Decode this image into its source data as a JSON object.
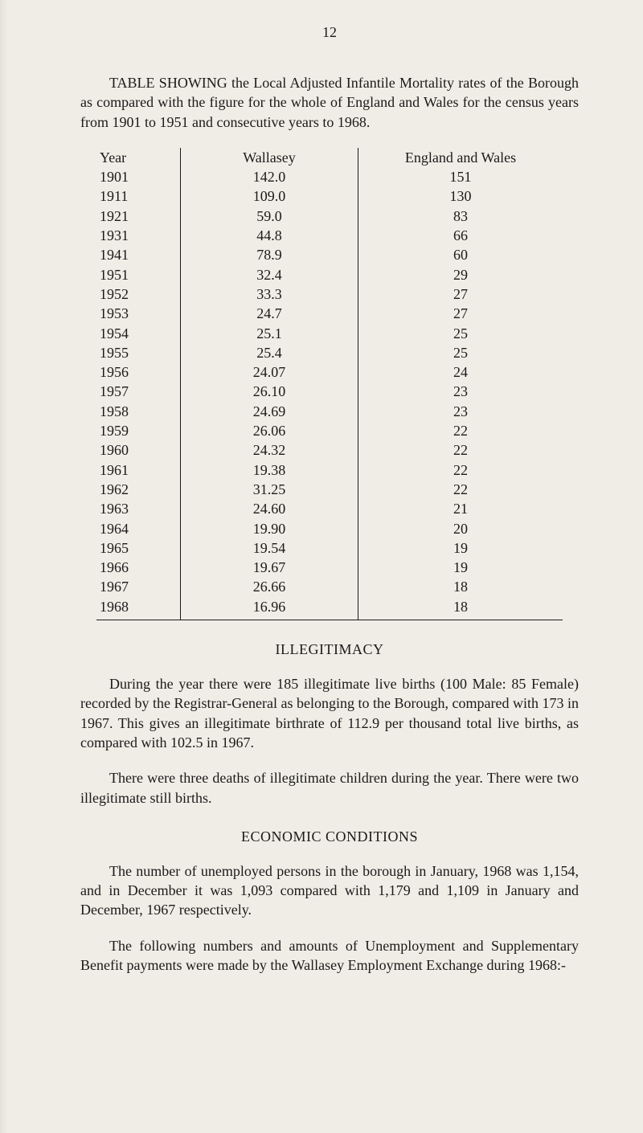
{
  "page_number": "12",
  "intro_paragraph": "TABLE SHOWING the Local Adjusted Infantile Mortality rates of the Borough as compared with the figure for the whole of England and Wales for the census years from 1901 to 1951 and consecutive years to 1968.",
  "mortality_table": {
    "type": "table",
    "columns": [
      "Year",
      "Wallasey",
      "England and Wales"
    ],
    "rows": [
      [
        "1901",
        "142.0",
        "151"
      ],
      [
        "1911",
        "109.0",
        "130"
      ],
      [
        "1921",
        "59.0",
        "83"
      ],
      [
        "1931",
        "44.8",
        "66"
      ],
      [
        "1941",
        "78.9",
        "60"
      ],
      [
        "1951",
        "32.4",
        "29"
      ],
      [
        "1952",
        "33.3",
        "27"
      ],
      [
        "1953",
        "24.7",
        "27"
      ],
      [
        "1954",
        "25.1",
        "25"
      ],
      [
        "1955",
        "25.4",
        "25"
      ],
      [
        "1956",
        "24.07",
        "24"
      ],
      [
        "1957",
        "26.10",
        "23"
      ],
      [
        "1958",
        "24.69",
        "23"
      ],
      [
        "1959",
        "26.06",
        "22"
      ],
      [
        "1960",
        "24.32",
        "22"
      ],
      [
        "1961",
        "19.38",
        "22"
      ],
      [
        "1962",
        "31.25",
        "22"
      ],
      [
        "1963",
        "24.60",
        "21"
      ],
      [
        "1964",
        "19.90",
        "20"
      ],
      [
        "1965",
        "19.54",
        "19"
      ],
      [
        "1966",
        "19.67",
        "19"
      ],
      [
        "1967",
        "26.66",
        "18"
      ],
      [
        "1968",
        "16.96",
        "18"
      ]
    ],
    "border_color": "#1a1a1a",
    "font_size": 18
  },
  "sections": {
    "illegitimacy": {
      "title": "ILLEGITIMACY",
      "paragraphs": [
        "During the year there were 185 illegitimate live births (100 Male: 85 Female) recorded by the Registrar-General as belonging to the Borough, compared with 173 in 1967. This gives an illegitimate birthrate of 112.9 per thousand total live births, as compared with 102.5 in 1967.",
        "There were three deaths of illegitimate children during the year. There were two illegitimate still births."
      ]
    },
    "economic": {
      "title": "ECONOMIC CONDITIONS",
      "paragraphs": [
        "The number of unemployed persons in the borough in January, 1968 was 1,154, and in December it was 1,093 compared with 1,179 and 1,109 in January and December, 1967 respectively.",
        "The following numbers and amounts of Unemployment and Supplementary Benefit payments were made by the Wallasey Employment Exchange during 1968:-"
      ]
    }
  },
  "style": {
    "background_color": "#f0ede6",
    "text_color": "#1a1a1a",
    "body_font_size": 18,
    "font_family": "Times New Roman, Georgia, serif"
  }
}
